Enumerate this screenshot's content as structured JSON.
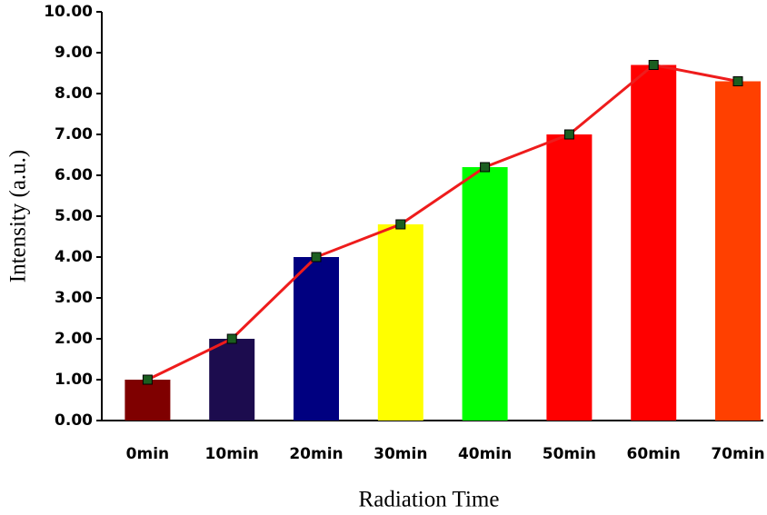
{
  "chart_data": {
    "type": "bar",
    "x_label": "Radiation Time",
    "y_label": "Intensity (a.u.)",
    "categories": [
      "0min",
      "10min",
      "20min",
      "30min",
      "40min",
      "50min",
      "60min",
      "70min"
    ],
    "values": [
      1.0,
      2.0,
      4.0,
      4.8,
      6.2,
      7.0,
      8.7,
      8.3
    ],
    "colors": [
      "#7f0000",
      "#1c0c4e",
      "#000080",
      "#ffff00",
      "#00ff00",
      "#ff0000",
      "#ff0000",
      "#ff4000"
    ],
    "line": {
      "color": "#ee1c1c",
      "marker_color": "#1b5e20"
    },
    "ylim": [
      0,
      10
    ],
    "yticks": [
      {
        "value": 0,
        "label": "0.00"
      },
      {
        "value": 1,
        "label": "1.00"
      },
      {
        "value": 2,
        "label": "2.00"
      },
      {
        "value": 3,
        "label": "3.00"
      },
      {
        "value": 4,
        "label": "4.00"
      },
      {
        "value": 5,
        "label": "5.00"
      },
      {
        "value": 6,
        "label": "6.00"
      },
      {
        "value": 7,
        "label": "7.00"
      },
      {
        "value": 8,
        "label": "8.00"
      },
      {
        "value": 9,
        "label": "9.00"
      },
      {
        "value": 10,
        "label": "10.00"
      }
    ],
    "grid": false
  }
}
